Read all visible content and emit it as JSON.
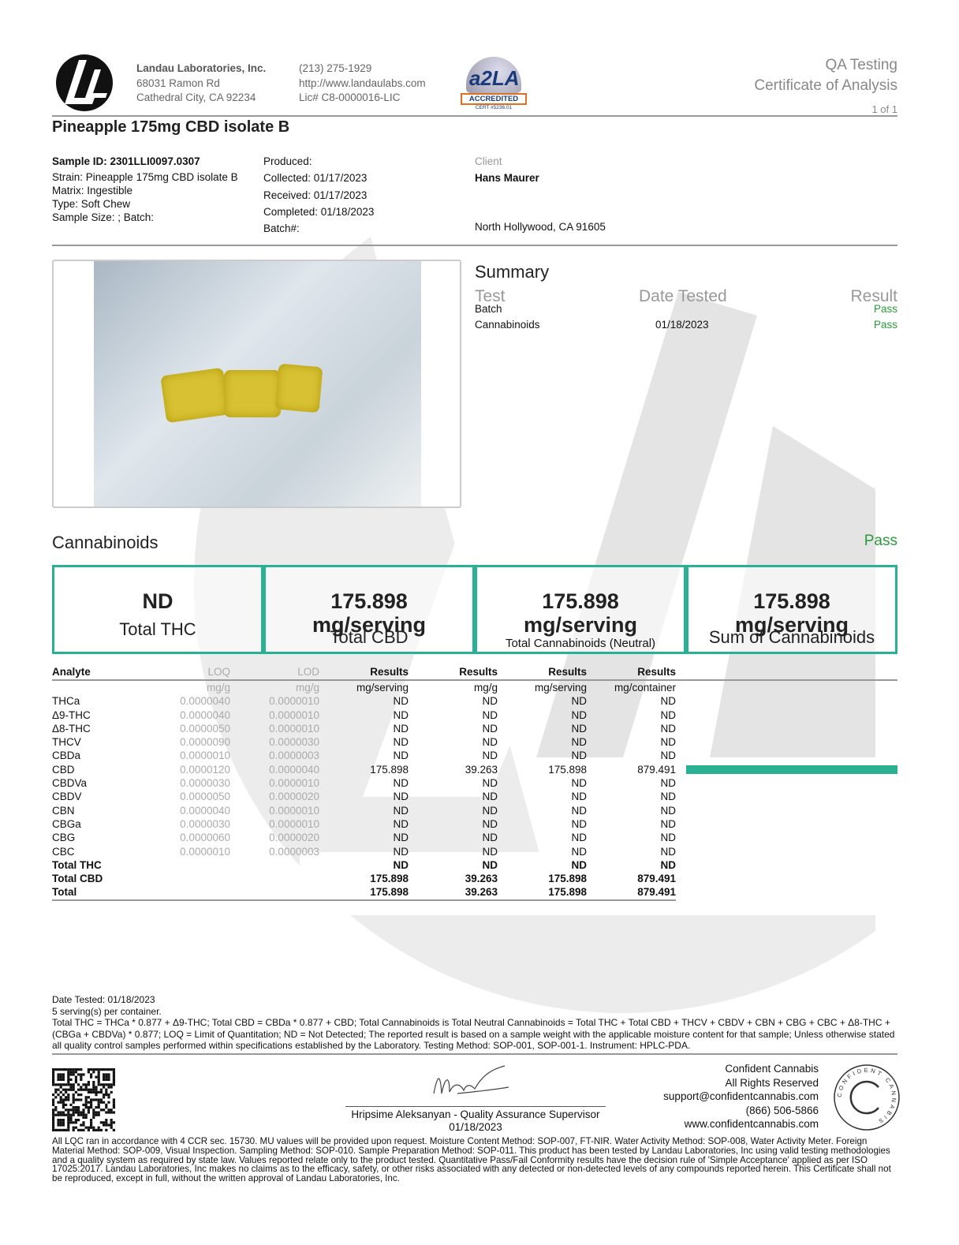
{
  "header": {
    "company": "Landau Laboratories, Inc.",
    "address1": "68031 Ramon Rd",
    "address2": "Cathedral City, CA 92234",
    "phone": "(213) 275-1929",
    "website": "http://www.landaulabs.com",
    "license": "Lic# C8-0000016-LIC",
    "accreditation_badge": "ACCREDITED",
    "accreditation_cert": "CERT #5236.01",
    "doc_type1": "QA Testing",
    "doc_type2": "Certificate of Analysis",
    "page": "1 of 1"
  },
  "title": "Pineapple 175mg CBD isolate B",
  "sample": {
    "id": "Sample ID: 2301LLI0097.0307",
    "strain": "Strain: Pineapple 175mg CBD isolate B",
    "matrix": "Matrix: Ingestible",
    "type": "Type: Soft Chew",
    "size": "Sample Size: ; Batch:"
  },
  "dates": {
    "produced": "Produced:",
    "collected": "Collected: 01/17/2023",
    "received": "Received: 01/17/2023",
    "completed": "Completed: 01/18/2023",
    "batch": "Batch#:"
  },
  "client": {
    "label": "Client",
    "name": "Hans Maurer",
    "city": "North Hollywood, CA 91605"
  },
  "summary": {
    "title": "Summary",
    "col_test": "Test",
    "col_date": "Date Tested",
    "col_result": "Result",
    "rows": [
      {
        "test": "Batch",
        "date": "",
        "result": "Pass"
      },
      {
        "test": "Cannabinoids",
        "date": "01/18/2023",
        "result": "Pass"
      }
    ]
  },
  "cannabinoids": {
    "title": "Cannabinoids",
    "result": "Pass",
    "accent": "#2ab092",
    "boxes": [
      {
        "value": "ND",
        "label": "Total THC"
      },
      {
        "value": "175.898",
        "unit": "mg/serving",
        "label": "Total CBD"
      },
      {
        "value": "175.898",
        "unit": "mg/serving",
        "label": "Total Cannabinoids (Neutral)"
      },
      {
        "value": "175.898",
        "unit": "mg/serving",
        "label": "Sum of Cannabinoids"
      }
    ],
    "headers": [
      "Analyte",
      "LOQ",
      "LOD",
      "Results",
      "Results",
      "Results",
      "Results"
    ],
    "units": [
      "",
      "mg/g",
      "mg/g",
      "mg/serving",
      "mg/g",
      "mg/serving",
      "mg/container"
    ],
    "rows": [
      [
        "THCa",
        "0.0000040",
        "0.0000010",
        "ND",
        "ND",
        "ND",
        "ND"
      ],
      [
        "Δ9-THC",
        "0.0000040",
        "0.0000010",
        "ND",
        "ND",
        "ND",
        "ND"
      ],
      [
        "Δ8-THC",
        "0.0000050",
        "0.0000010",
        "ND",
        "ND",
        "ND",
        "ND"
      ],
      [
        "THCV",
        "0.0000090",
        "0.0000030",
        "ND",
        "ND",
        "ND",
        "ND"
      ],
      [
        "CBDa",
        "0.0000010",
        "0.0000003",
        "ND",
        "ND",
        "ND",
        "ND"
      ],
      [
        "CBD",
        "0.0000120",
        "0.0000040",
        "175.898",
        "39.263",
        "175.898",
        "879.491"
      ],
      [
        "CBDVa",
        "0.0000030",
        "0.0000010",
        "ND",
        "ND",
        "ND",
        "ND"
      ],
      [
        "CBDV",
        "0.0000050",
        "0.0000020",
        "ND",
        "ND",
        "ND",
        "ND"
      ],
      [
        "CBN",
        "0.0000040",
        "0.0000010",
        "ND",
        "ND",
        "ND",
        "ND"
      ],
      [
        "CBGa",
        "0.0000030",
        "0.0000010",
        "ND",
        "ND",
        "ND",
        "ND"
      ],
      [
        "CBG",
        "0.0000060",
        "0.0000020",
        "ND",
        "ND",
        "ND",
        "ND"
      ],
      [
        "CBC",
        "0.0000010",
        "0.0000003",
        "ND",
        "ND",
        "ND",
        "ND"
      ]
    ],
    "bar_fraction": {
      "CBD": 1.0
    },
    "totals": [
      [
        "Total THC",
        "",
        "",
        "ND",
        "ND",
        "ND",
        "ND"
      ],
      [
        "Total CBD",
        "",
        "",
        "175.898",
        "39.263",
        "175.898",
        "879.491"
      ],
      [
        "Total",
        "",
        "",
        "175.898",
        "39.263",
        "175.898",
        "879.491"
      ]
    ]
  },
  "notes": {
    "date_tested": "Date Tested: 01/18/2023",
    "servings": "5 serving(s) per container.",
    "definitions": "Total THC = THCa * 0.877 + Δ9-THC; Total CBD = CBDa * 0.877 + CBD;  Total Cannabinoids is Total Neutral Cannabinoids = Total THC + Total CBD + THCV + CBDV + CBN + CBG + CBC + Δ8-THC + (CBGa + CBDVa) * 0.877; LOQ = Limit of Quantitation; ND = Not Detected; The reported result is based on a sample weight with the applicable moisture content for that sample; Unless otherwise stated all quality control samples performed within specifications established by the Laboratory. Testing Method: SOP-001, SOP-001-1. Instrument: HPLC-PDA."
  },
  "signature": {
    "name": "Hripsime Aleksanyan - Quality Assurance Supervisor",
    "date": "01/18/2023"
  },
  "confident": {
    "name": "Confident Cannabis",
    "rights": "All Rights Reserved",
    "email": "support@confidentcannabis.com",
    "phone": "(866) 506-5866",
    "web": "www.confidentcannabis.com",
    "seal_text": "CONFIDENT CANNABIS"
  },
  "disclaimer": "All LQC ran in accordance with 4 CCR sec. 15730. MU values will be provided upon request. Moisture Content Method: SOP-007, FT-NIR. Water Activity Method: SOP-008, Water Activity Meter. Foreign Material Method: SOP-009, Visual Inspection. Sampling Method: SOP-010. Sample Preparation Method: SOP-011. This product has been tested by Landau Laboratories, Inc using valid testing methodologies and a quality system as required by state law. Values reported relate only to the product tested. Quantitative Pass/Fail Conformity results have the decision rule of 'Simple Acceptance' applied as per ISO 17025:2017. Landau Laboratories, Inc makes no claims as to the efficacy, safety, or other risks associated with any detected or non-detected levels of any compounds reported herein. This Certificate shall not be reproduced, except in full, without the written approval of Landau Laboratories, Inc."
}
